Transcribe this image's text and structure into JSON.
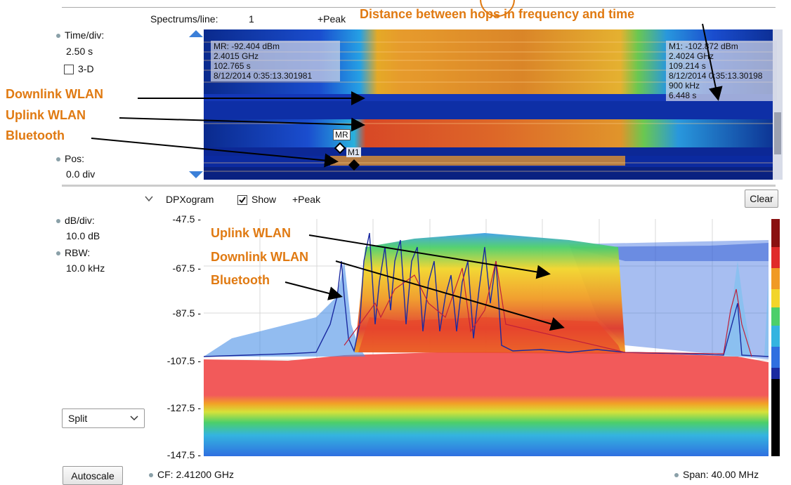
{
  "top": {
    "spectrums_label": "Spectrums/line:",
    "spectrums_value": "1",
    "peak_label": "+Peak",
    "title_annotation": "Distance between hops in frequency and time",
    "time_div_label": "Time/div:",
    "time_div_value": "2.50 s",
    "three_d_label": "3-D",
    "pos_label": "Pos:",
    "pos_value": "0.0 div"
  },
  "marker_mr": {
    "line1": "MR: -92.404 dBm",
    "line2": "2.4015 GHz",
    "line3": "102.765 s",
    "line4": "8/12/2014 0:35:13.301981",
    "tag": "MR"
  },
  "marker_m1": {
    "line1": "M1: -102.872 dBm",
    "line2": "2.4024 GHz",
    "line3": "109.214 s",
    "line4": "8/12/2014 0:35:13.30198",
    "line5": "900 kHz",
    "line6": "6.448 s",
    "tag": "M1"
  },
  "top_annotations": {
    "downlink": "Downlink WLAN",
    "uplink": "Uplink WLAN",
    "bluetooth": "Bluetooth"
  },
  "dpx": {
    "title": "DPXogram",
    "show_label": "Show",
    "peak_label": "+Peak",
    "clear_label": "Clear",
    "db_div_label": "dB/div:",
    "db_div_value": "10.0 dB",
    "rbw_label": "RBW:",
    "rbw_value": "10.0 kHz",
    "split_value": "Split",
    "autoscale_label": "Autoscale",
    "cf_label": "CF: 2.41200 GHz",
    "span_label": "Span: 40.00 MHz",
    "yticks": [
      "-47.5 -",
      "-67.5 -",
      "-87.5 -",
      "-107.5 -",
      "-127.5 -",
      "-147.5 -"
    ]
  },
  "bottom_annotations": {
    "uplink": "Uplink WLAN",
    "downlink": "Downlink WLAN",
    "bluetooth": "Bluetooth"
  },
  "colors": {
    "annotation": "#e07a12",
    "waterfall_bg": "#0a2a8c",
    "spectrum_red": "#f25a5a",
    "trace_blue": "#1a2aa0",
    "trace_red": "#c0203a"
  }
}
